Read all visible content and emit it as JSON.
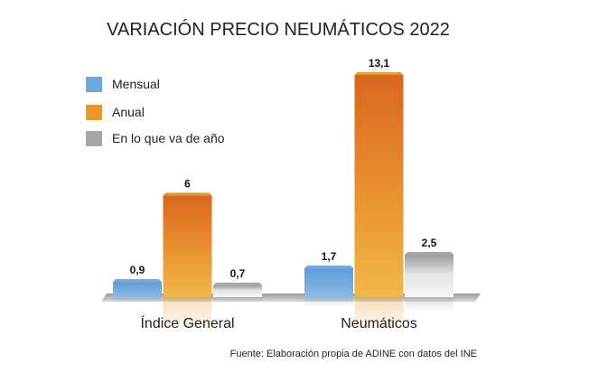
{
  "chart_data": {
    "type": "bar",
    "title": "VARIACIÓN PRECIO NEUMÁTICOS 2022",
    "categories": [
      "Índice General",
      "Neumáticos"
    ],
    "series": [
      {
        "name": "Mensual",
        "values": [
          0.9,
          1.7
        ],
        "labels": [
          "0,9",
          "1,7"
        ],
        "color": "#6fa8dc"
      },
      {
        "name": "Anual",
        "values": [
          6,
          13.1
        ],
        "labels": [
          "6",
          "13,1"
        ],
        "color": "#e69a2e"
      },
      {
        "name": "En lo que va de año",
        "values": [
          0.7,
          2.5
        ],
        "labels": [
          "0,7",
          "2,5"
        ],
        "color": "#a6a6a8"
      }
    ],
    "ylim": [
      0,
      13.1
    ],
    "grid": false,
    "legend_position": "top-left",
    "source": "Fuente: Elaboración propia de ADINE con datos del INE"
  }
}
